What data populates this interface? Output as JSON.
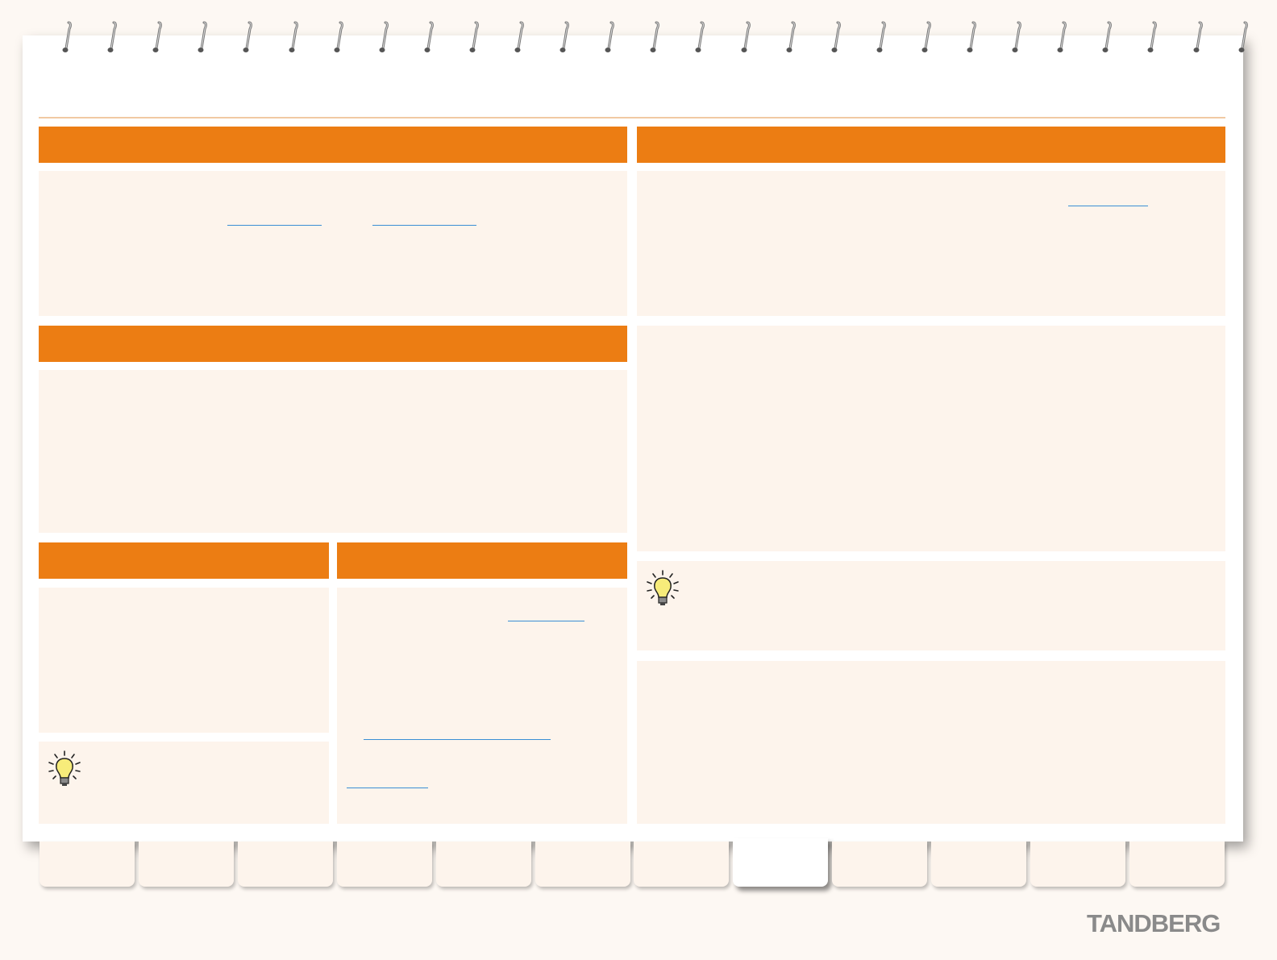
{
  "brand": {
    "logo_text": "TANDBERG"
  },
  "tabs": {
    "count": 12,
    "active_index": 7
  },
  "colors": {
    "accent": "#ec7d13",
    "panel": "#fdf4ec",
    "link": "#3a8fd4",
    "background": "#fdf8f3"
  },
  "icons": {
    "tip": "lightbulb-icon",
    "binding": "spiral-ring-icon"
  }
}
